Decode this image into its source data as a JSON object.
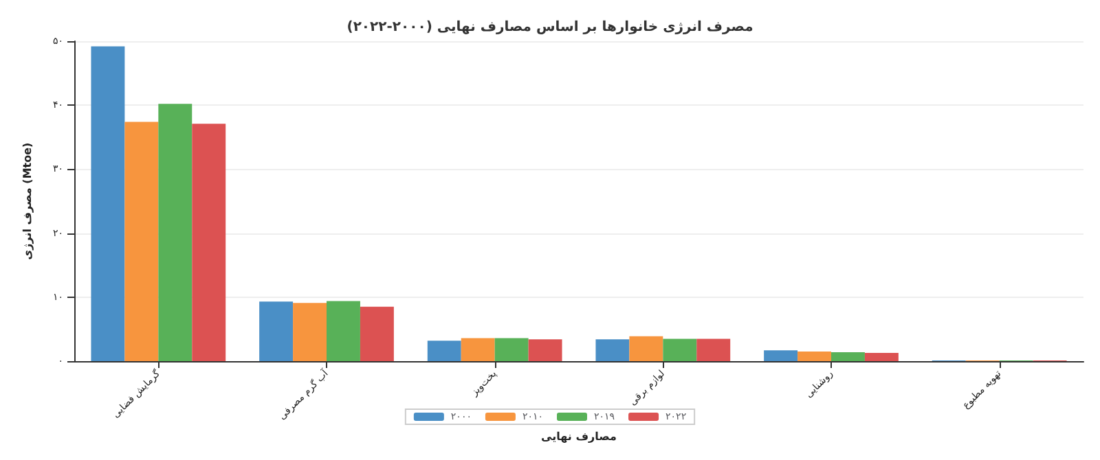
{
  "chart_data": {
    "type": "bar",
    "title": "مصرف انرژی خانوارها بر اساس مصارف نهایی (۲۰۰۰-۲۰۲۲)",
    "xlabel": "مصارف نهایی",
    "ylabel": "مصرف انرژی (Mtoe)",
    "categories": [
      "گرمایش فضایی",
      "آب گرم مصرفی",
      "پخت‌وپز",
      "لوازم برقی",
      "روشنایی",
      "تهویه مطبوع"
    ],
    "series": [
      {
        "name": "۲۰۰۰",
        "color": "#4a8fc6",
        "values": [
          49.2,
          9.3,
          3.2,
          3.4,
          1.7,
          0.1
        ]
      },
      {
        "name": "۲۰۱۰",
        "color": "#f7953e",
        "values": [
          37.4,
          9.1,
          3.6,
          3.9,
          1.5,
          0.1
        ]
      },
      {
        "name": "۲۰۱۹",
        "color": "#58b158",
        "values": [
          40.2,
          9.4,
          3.6,
          3.5,
          1.4,
          0.1
        ]
      },
      {
        "name": "۲۰۲۲",
        "color": "#dc5252",
        "values": [
          37.1,
          8.5,
          3.4,
          3.5,
          1.3,
          0.1
        ]
      }
    ],
    "ylim": [
      0,
      50
    ],
    "yticks": [
      {
        "value": 0,
        "label": "۰"
      },
      {
        "value": 10,
        "label": "۱۰"
      },
      {
        "value": 20,
        "label": "۲۰"
      },
      {
        "value": 30,
        "label": "۳۰"
      },
      {
        "value": 40,
        "label": "۴۰"
      },
      {
        "value": 50,
        "label": "۵۰"
      }
    ],
    "grid": "y",
    "legend": "bottom"
  }
}
